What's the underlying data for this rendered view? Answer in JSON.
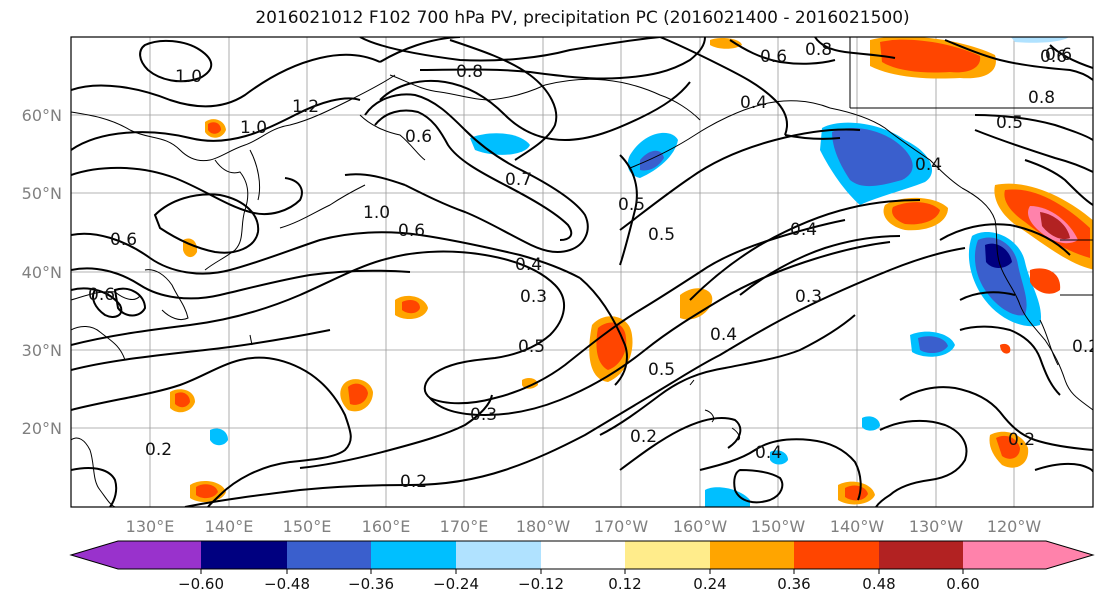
{
  "title": "2016021012 F102 700 hPa PV, precipitation PC (2016021400 - 2016021500)",
  "map": {
    "lat_labels": [
      "60°N",
      "50°N",
      "40°N",
      "30°N",
      "20°N"
    ],
    "lon_labels": [
      "130°E",
      "140°E",
      "150°E",
      "160°E",
      "170°E",
      "180°W",
      "170°W",
      "160°W",
      "150°W",
      "140°W",
      "130°W",
      "120°W"
    ],
    "contour_labels": [
      "1.0",
      "1.2",
      "1.0",
      "0.8",
      "0.6",
      "0.6",
      "0.8",
      "0.6",
      "0.8",
      "0.6",
      "0.5",
      "0.4",
      "0.4",
      "0.5",
      "0.4",
      "0.3",
      "0.4",
      "0.5",
      "0.3",
      "0.4",
      "0.5",
      "0.5",
      "0.3",
      "0.2",
      "0.2",
      "0.4",
      "0.2",
      "0.2",
      "0.6",
      "0.6",
      "0.7",
      "1.0",
      "0.6",
      "0.2"
    ]
  },
  "colorbar": {
    "tick_labels": [
      "−0.60",
      "−0.48",
      "−0.36",
      "−0.24",
      "−0.12",
      "0.12",
      "0.24",
      "0.36",
      "0.48",
      "0.60"
    ],
    "colors": [
      "#9932cc",
      "#000080",
      "#3a5fcd",
      "#00bfff",
      "#b0e2ff",
      "#ffffff",
      "#ffec8b",
      "#ffa500",
      "#ff4500",
      "#b22222",
      "#ff82ab"
    ]
  }
}
